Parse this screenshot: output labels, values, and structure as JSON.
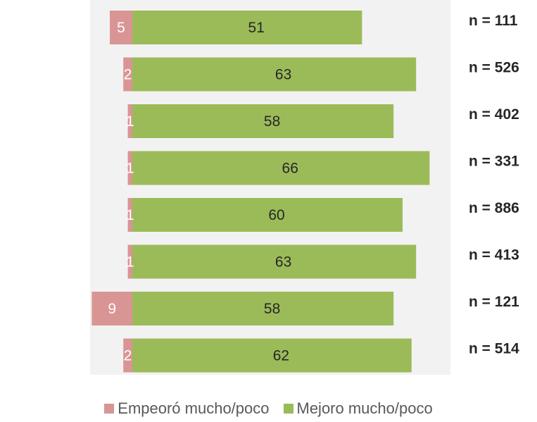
{
  "chart_data": {
    "type": "bar",
    "orientation": "horizontal",
    "stacked": "diverging",
    "series": [
      {
        "name": "Empeoró mucho/poco",
        "color": "#D99594",
        "direction": "left",
        "values": [
          5,
          2,
          1,
          1,
          1,
          1,
          9,
          2
        ]
      },
      {
        "name": "Mejoro mucho/poco",
        "color": "#9BBB59",
        "direction": "right",
        "values": [
          51,
          63,
          58,
          66,
          60,
          63,
          58,
          62
        ]
      }
    ],
    "row_notes": [
      "n = 111",
      "n = 526",
      "n = 402",
      "n = 331",
      "n = 886",
      "n = 413",
      "n = 121",
      "n = 514"
    ],
    "legend_position": "bottom",
    "grid": false,
    "plot_background": "#F2F2F2"
  }
}
